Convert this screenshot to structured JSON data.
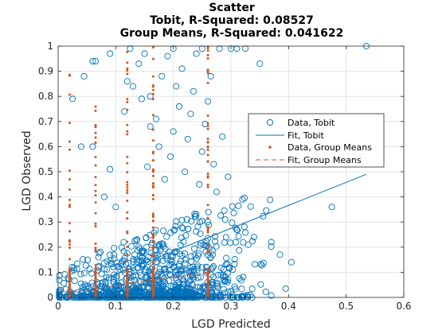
{
  "chart_data": {
    "type": "scatter",
    "title": [
      "Scatter",
      "Tobit, R-Squared: 0.08527",
      "Group Means, R-Squared: 0.041622"
    ],
    "xlabel": "LGD Predicted",
    "ylabel": "LGD Observed",
    "xlim": [
      0,
      0.6
    ],
    "ylim": [
      0,
      1
    ],
    "xticks": [
      "0",
      "0.1",
      "0.2",
      "0.3",
      "0.4",
      "0.5",
      "0.6"
    ],
    "yticks": [
      "0",
      "0.1",
      "0.2",
      "0.3",
      "0.4",
      "0.5",
      "0.6",
      "0.7",
      "0.8",
      "0.9",
      "1"
    ],
    "grid": true,
    "legend_position": "right",
    "series": [
      {
        "name": "Data, Tobit",
        "kind": "scatter",
        "marker": "circle",
        "color": "#0072BD",
        "points": [
          [
            0.045,
            0.88
          ],
          [
            0.06,
            0.94
          ],
          [
            0.06,
            0.6
          ],
          [
            0.065,
            0.94
          ],
          [
            0.07,
            0.16
          ],
          [
            0.025,
            0.79
          ],
          [
            0.04,
            0.6
          ],
          [
            0.08,
            0.4
          ],
          [
            0.09,
            0.51
          ],
          [
            0.1,
            0.36
          ],
          [
            0.115,
            0.74
          ],
          [
            0.12,
            0.86
          ],
          [
            0.125,
            0.99
          ],
          [
            0.13,
            0.84
          ],
          [
            0.14,
            0.93
          ],
          [
            0.145,
            0.79
          ],
          [
            0.15,
            0.97
          ],
          [
            0.155,
            0.52
          ],
          [
            0.16,
            0.68
          ],
          [
            0.16,
            0.8
          ],
          [
            0.17,
            0.71
          ],
          [
            0.175,
            0.6
          ],
          [
            0.18,
            0.88
          ],
          [
            0.185,
            0.47
          ],
          [
            0.19,
            0.96
          ],
          [
            0.195,
            0.56
          ],
          [
            0.2,
            0.66
          ],
          [
            0.205,
            0.84
          ],
          [
            0.21,
            0.76
          ],
          [
            0.215,
            0.91
          ],
          [
            0.22,
            0.5
          ],
          [
            0.225,
            0.63
          ],
          [
            0.23,
            0.73
          ],
          [
            0.235,
            0.82
          ],
          [
            0.24,
            0.97
          ],
          [
            0.245,
            0.45
          ],
          [
            0.25,
            0.58
          ],
          [
            0.255,
            0.69
          ],
          [
            0.26,
            0.78
          ],
          [
            0.265,
            0.88
          ],
          [
            0.27,
            0.53
          ],
          [
            0.275,
            0.42
          ],
          [
            0.28,
            0.99
          ],
          [
            0.285,
            0.64
          ],
          [
            0.29,
            0.31
          ],
          [
            0.295,
            0.48
          ],
          [
            0.3,
            0.99
          ],
          [
            0.31,
            0.27
          ],
          [
            0.32,
            0.39
          ],
          [
            0.325,
            0.99
          ],
          [
            0.33,
            0.21
          ],
          [
            0.34,
            0.24
          ],
          [
            0.35,
            0.93
          ],
          [
            0.37,
            0.22
          ],
          [
            0.385,
            0.17
          ],
          [
            0.395,
            0.035
          ],
          [
            0.405,
            0.14
          ],
          [
            0.475,
            0.36
          ],
          [
            0.535,
            1.0
          ],
          [
            0.09,
            0.97
          ],
          [
            0.2,
            0.99
          ],
          [
            0.25,
            0.99
          ],
          [
            0.31,
            0.99
          ]
        ]
      },
      {
        "name": "Fit, Tobit",
        "kind": "line",
        "color": "#0072BD",
        "points": [
          [
            0.0,
            0.0
          ],
          [
            0.535,
            0.49
          ]
        ]
      },
      {
        "name": "Data, Group Means",
        "kind": "scatter",
        "marker": "dot",
        "color": "#D95319",
        "x_groups": [
          0.02,
          0.065,
          0.12,
          0.165,
          0.26
        ],
        "points_note": "",
        "points": []
      },
      {
        "name": "Fit, Group Means",
        "kind": "line",
        "style": "dashed",
        "color": "#D95319",
        "points": [
          [
            0.02,
            0.018
          ],
          [
            0.065,
            0.035
          ],
          [
            0.12,
            0.055
          ],
          [
            0.165,
            0.07
          ],
          [
            0.26,
            0.1
          ]
        ]
      }
    ]
  }
}
